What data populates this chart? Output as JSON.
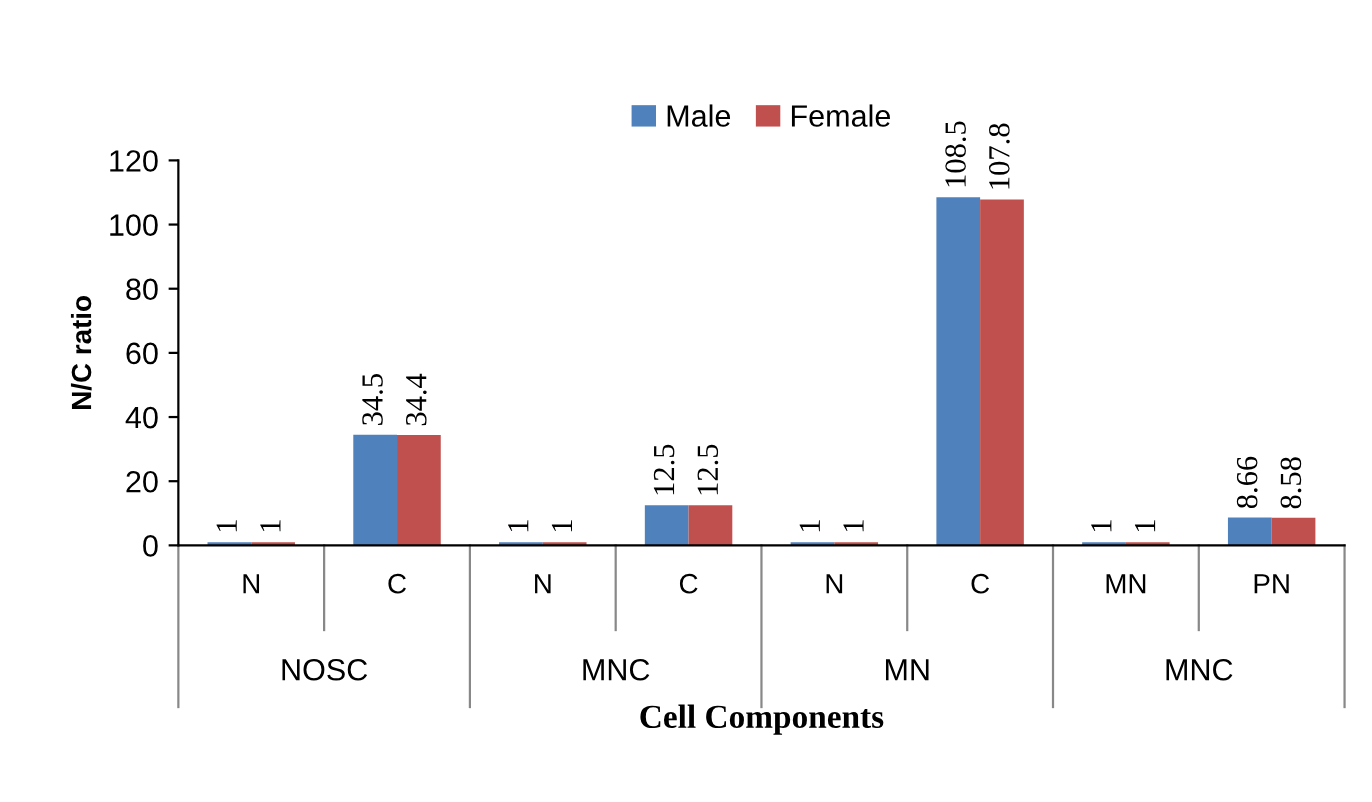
{
  "chart_data": {
    "type": "bar",
    "xlabel": "Cell Components",
    "ylabel": "N/C ratio",
    "categories": [
      "N",
      "C",
      "N",
      "C",
      "N",
      "C",
      "MN",
      "PN"
    ],
    "series": [
      {
        "name": "Male",
        "color": "#4f81bd",
        "values": [
          1,
          34.5,
          1,
          12.5,
          1,
          108.5,
          1,
          8.66
        ]
      },
      {
        "name": "Female",
        "color": "#c0504d",
        "values": [
          1,
          34.4,
          1,
          12.5,
          1,
          107.8,
          1,
          8.58
        ]
      }
    ],
    "annotations": [
      "NOSC",
      "MNC",
      "MN",
      "MNC"
    ],
    "ylim": [
      0,
      120
    ],
    "yticks": [
      0,
      20,
      40,
      60,
      80,
      100,
      120
    ],
    "grid": false,
    "legend": "top",
    "data_labels": true
  }
}
